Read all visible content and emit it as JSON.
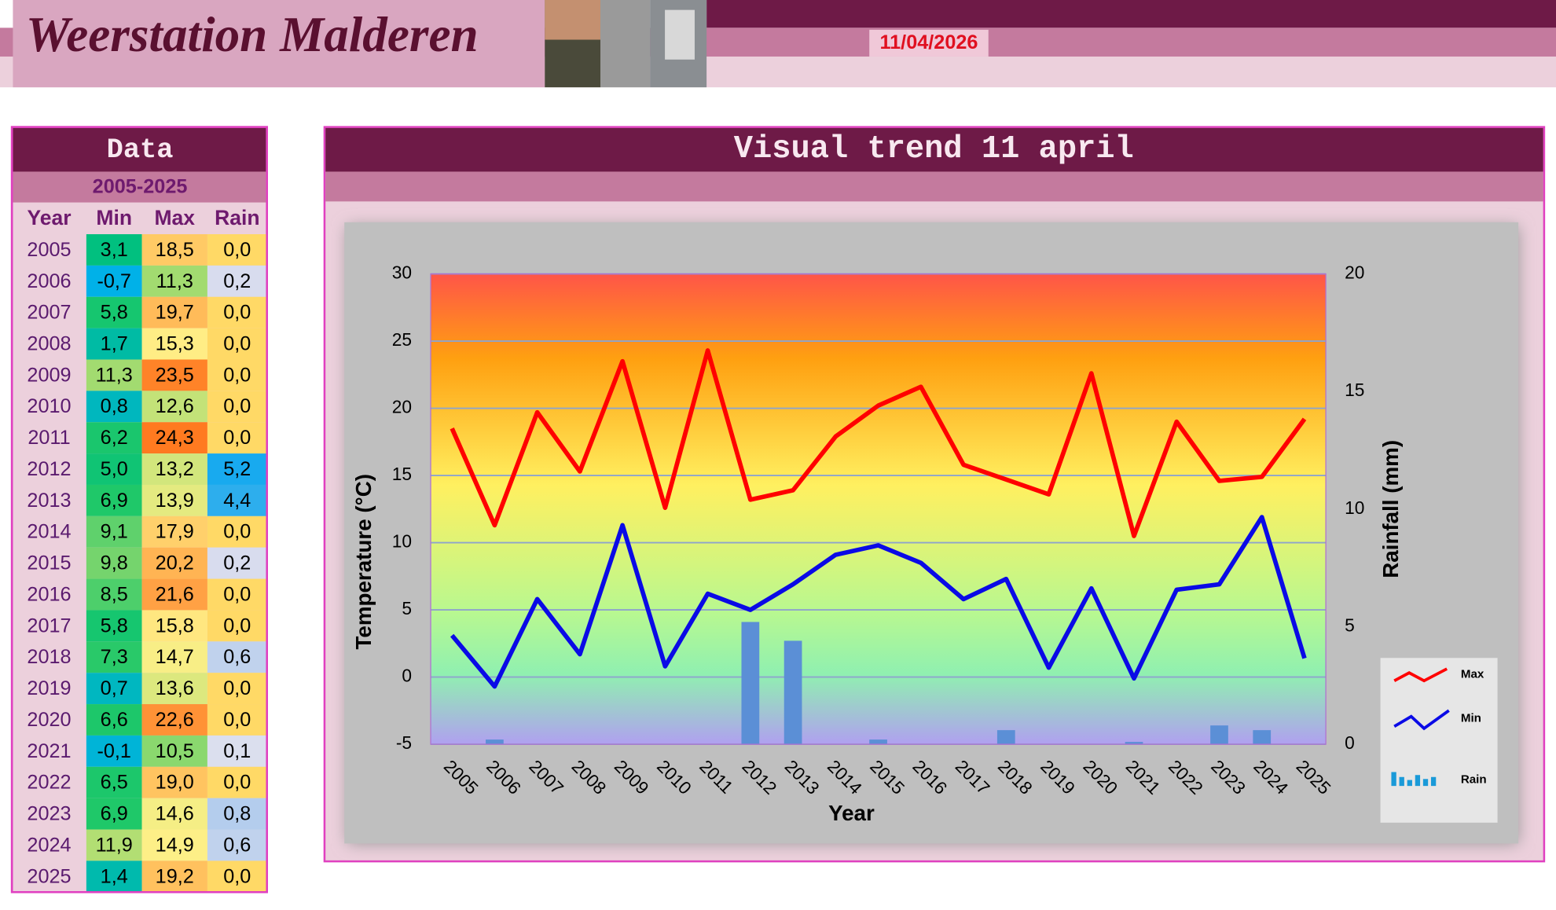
{
  "header": {
    "title": "Weerstation Malderen",
    "date": "11/04/2026"
  },
  "table": {
    "title": "Data",
    "period": "2005-2025",
    "columns": [
      "Year",
      "Min",
      "Max",
      "Rain"
    ],
    "rows": [
      [
        "2005",
        "3,1",
        "18,5",
        "0,0"
      ],
      [
        "2006",
        "-0,7",
        "11,3",
        "0,2"
      ],
      [
        "2007",
        "5,8",
        "19,7",
        "0,0"
      ],
      [
        "2008",
        "1,7",
        "15,3",
        "0,0"
      ],
      [
        "2009",
        "11,3",
        "23,5",
        "0,0"
      ],
      [
        "2010",
        "0,8",
        "12,6",
        "0,0"
      ],
      [
        "2011",
        "6,2",
        "24,3",
        "0,0"
      ],
      [
        "2012",
        "5,0",
        "13,2",
        "5,2"
      ],
      [
        "2013",
        "6,9",
        "13,9",
        "4,4"
      ],
      [
        "2014",
        "9,1",
        "17,9",
        "0,0"
      ],
      [
        "2015",
        "9,8",
        "20,2",
        "0,2"
      ],
      [
        "2016",
        "8,5",
        "21,6",
        "0,0"
      ],
      [
        "2017",
        "5,8",
        "15,8",
        "0,0"
      ],
      [
        "2018",
        "7,3",
        "14,7",
        "0,6"
      ],
      [
        "2019",
        "0,7",
        "13,6",
        "0,0"
      ],
      [
        "2020",
        "6,6",
        "22,6",
        "0,0"
      ],
      [
        "2021",
        "-0,1",
        "10,5",
        "0,1"
      ],
      [
        "2022",
        "6,5",
        "19,0",
        "0,0"
      ],
      [
        "2023",
        "6,9",
        "14,6",
        "0,8"
      ],
      [
        "2024",
        "11,9",
        "14,9",
        "0,6"
      ],
      [
        "2025",
        "1,4",
        "19,2",
        "0,0"
      ]
    ]
  },
  "chart_data": {
    "type": "line",
    "title": "Visual trend 11 april",
    "x_label": "Year",
    "y_label": "Temperature (°C)",
    "y2_label": "Rainfall (mm)",
    "categories": [
      "2005",
      "2006",
      "2007",
      "2008",
      "2009",
      "2010",
      "2011",
      "2012",
      "2013",
      "2014",
      "2015",
      "2016",
      "2017",
      "2018",
      "2019",
      "2020",
      "2021",
      "2022",
      "2023",
      "2024",
      "2025"
    ],
    "series": [
      {
        "name": "Max",
        "color": "#ff0000",
        "values": [
          18.5,
          11.3,
          19.7,
          15.3,
          23.5,
          12.6,
          24.3,
          13.2,
          13.9,
          17.9,
          20.2,
          21.6,
          15.8,
          14.7,
          13.6,
          22.6,
          10.5,
          19.0,
          14.6,
          14.9,
          19.2
        ]
      },
      {
        "name": "Min",
        "color": "#0a0ae6",
        "values": [
          3.1,
          -0.7,
          5.8,
          1.7,
          11.3,
          0.8,
          6.2,
          5.0,
          6.9,
          9.1,
          9.8,
          8.5,
          5.8,
          7.3,
          0.7,
          6.6,
          -0.1,
          6.5,
          6.9,
          11.9,
          1.4
        ]
      },
      {
        "name": "Rain",
        "color": "#5b8fd6",
        "type": "bar",
        "axis": "y2",
        "values": [
          0,
          0.2,
          0,
          0,
          0,
          0,
          0,
          5.2,
          4.4,
          0,
          0.2,
          0,
          0,
          0.6,
          0,
          0,
          0.1,
          0,
          0.8,
          0.6,
          0
        ]
      }
    ],
    "ylim": [
      -5,
      30
    ],
    "yticks": [
      -5,
      0,
      5,
      10,
      15,
      20,
      25,
      30
    ],
    "y2lim": [
      0,
      20
    ],
    "y2ticks": [
      0,
      5,
      10,
      15,
      20
    ],
    "grid": true,
    "legend": "right"
  }
}
